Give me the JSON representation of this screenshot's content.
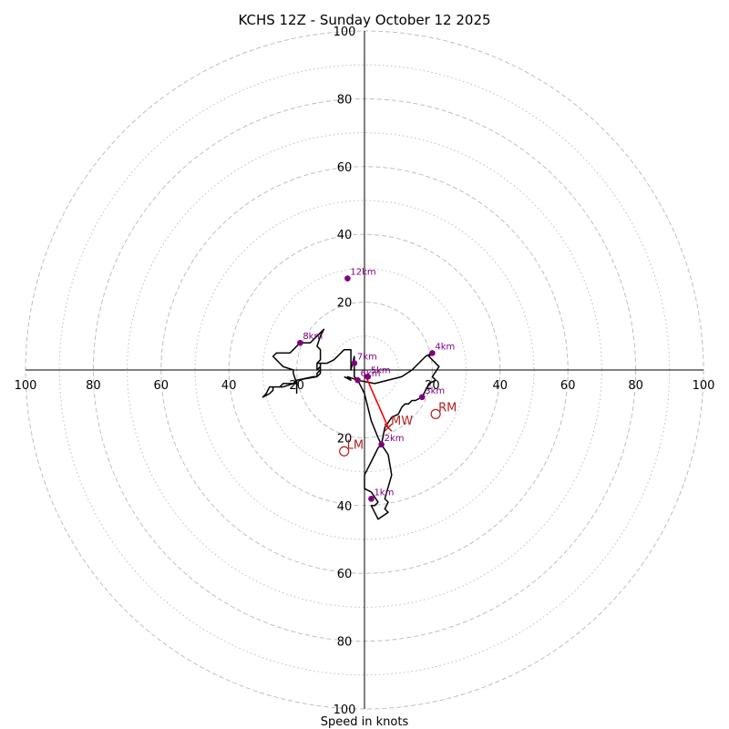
{
  "chart_data": {
    "type": "hodograph",
    "title": "KCHS 12Z - Sunday October 12 2025",
    "xlabel": "Speed in knots",
    "units": "knots",
    "range": [
      -100,
      100
    ],
    "major_rings": [
      20,
      40,
      60,
      80,
      100
    ],
    "minor_rings": [
      10,
      30,
      50,
      70,
      90
    ],
    "x_tick_labels": [
      "100",
      "80",
      "60",
      "40",
      "20",
      "20",
      "40",
      "60",
      "80",
      "100"
    ],
    "x_tick_values": [
      -100,
      -80,
      -60,
      -40,
      -20,
      20,
      40,
      60,
      80,
      100
    ],
    "y_tick_labels": [
      "100",
      "80",
      "60",
      "40",
      "20",
      "20",
      "40",
      "60",
      "80",
      "100"
    ],
    "y_tick_values": [
      100,
      80,
      60,
      40,
      20,
      -20,
      -40,
      -60,
      -80,
      -100
    ],
    "hodograph_trace": [
      [
        -6,
        -2
      ],
      [
        -4,
        -3
      ],
      [
        -5,
        -2
      ],
      [
        -2,
        -3
      ],
      [
        3,
        -4
      ],
      [
        11,
        -2
      ],
      [
        14,
        0
      ],
      [
        18,
        4
      ],
      [
        20,
        5
      ],
      [
        19,
        4
      ],
      [
        22,
        1
      ],
      [
        20,
        -2
      ],
      [
        21,
        -3
      ],
      [
        19,
        -4
      ],
      [
        17,
        -8
      ],
      [
        15,
        -9
      ],
      [
        14,
        -9
      ],
      [
        13,
        -10
      ],
      [
        12,
        -10
      ],
      [
        11,
        -11
      ],
      [
        10,
        -13
      ],
      [
        8,
        -14
      ],
      [
        6,
        -17
      ],
      [
        5,
        -22
      ],
      [
        4,
        -23
      ],
      [
        3,
        -25
      ],
      [
        1,
        -29
      ],
      [
        0,
        -31
      ],
      [
        0,
        -35
      ],
      [
        2,
        -36
      ],
      [
        4,
        -39
      ],
      [
        3,
        -40
      ],
      [
        2,
        -40
      ],
      [
        4,
        -44
      ],
      [
        7,
        -42
      ],
      [
        6,
        -41
      ],
      [
        7,
        -39
      ],
      [
        6,
        -38
      ],
      [
        8,
        -31
      ],
      [
        7,
        -25
      ],
      [
        5,
        -22
      ],
      [
        4,
        -20
      ],
      [
        2,
        -15
      ],
      [
        1,
        -11
      ],
      [
        0,
        -7
      ],
      [
        -1,
        -5
      ],
      [
        -2,
        -3
      ],
      [
        -3,
        -2
      ],
      [
        -3,
        2
      ],
      [
        -3,
        4
      ],
      [
        -4,
        0
      ],
      [
        -4,
        6
      ],
      [
        -6,
        6
      ],
      [
        -7,
        5
      ],
      [
        -9,
        3
      ],
      [
        -11,
        2
      ],
      [
        -14,
        2
      ],
      [
        -14,
        0
      ],
      [
        -13,
        1
      ],
      [
        -13,
        0
      ],
      [
        -14,
        -1
      ],
      [
        -14,
        -2
      ],
      [
        -15,
        -2
      ],
      [
        -20,
        -3
      ],
      [
        -20,
        -4
      ],
      [
        -21,
        -4
      ],
      [
        -24,
        -5
      ],
      [
        -25,
        -5
      ],
      [
        -27,
        -5
      ],
      [
        -27,
        -6
      ],
      [
        -28,
        -7
      ],
      [
        -30,
        -8
      ],
      [
        -29,
        -7
      ],
      [
        -28,
        -5
      ],
      [
        -27,
        -5
      ],
      [
        -25,
        -5
      ],
      [
        -24,
        -4
      ],
      [
        -21,
        -4
      ],
      [
        -20,
        -3
      ],
      [
        -14,
        -2
      ],
      [
        -13,
        -1
      ],
      [
        -13,
        0
      ],
      [
        -13,
        2
      ],
      [
        -14,
        2
      ],
      [
        -13,
        3
      ],
      [
        -13,
        6
      ],
      [
        -14,
        7
      ],
      [
        -13,
        10
      ],
      [
        -12,
        12
      ],
      [
        -13,
        11
      ],
      [
        -14,
        10
      ],
      [
        -16,
        8
      ],
      [
        -19,
        8
      ],
      [
        -21,
        6
      ],
      [
        -22,
        5
      ],
      [
        -23,
        5
      ],
      [
        -24,
        5
      ],
      [
        -26,
        5
      ],
      [
        -27,
        4
      ],
      [
        -26,
        3
      ],
      [
        -25,
        2
      ],
      [
        -24,
        1
      ],
      [
        -21,
        0
      ],
      [
        -21,
        -1
      ],
      [
        -20,
        -4
      ],
      [
        -20,
        -7
      ],
      [
        -20,
        -7
      ]
    ],
    "height_markers": [
      {
        "label": "1km",
        "u": 2,
        "v": -38
      },
      {
        "label": "2km",
        "u": 5,
        "v": -22
      },
      {
        "label": "3km",
        "u": 17,
        "v": -8
      },
      {
        "label": "4km",
        "u": 20,
        "v": 5
      },
      {
        "label": "5km",
        "u": 1,
        "v": -2
      },
      {
        "label": "6km",
        "u": -2,
        "v": -3
      },
      {
        "label": "7km",
        "u": -3,
        "v": 2
      },
      {
        "label": "8km",
        "u": -19,
        "v": 8
      },
      {
        "label": "12km",
        "u": -5,
        "v": 27
      }
    ],
    "motion_markers": [
      {
        "label": "RM",
        "u": 21,
        "v": -13
      },
      {
        "label": "LM",
        "u": -6,
        "v": -24
      },
      {
        "label": "MW",
        "u": 7,
        "v": -17
      }
    ],
    "mean_wind_vector": {
      "from": [
        0,
        -1
      ],
      "to": [
        7,
        -17
      ]
    }
  },
  "colors": {
    "ring": "#bfbfbf",
    "axis": "#000000",
    "trace": "#000000",
    "height_marker": "#800080",
    "motion": "#b22222",
    "mean_wind_arrow": "#ff0000"
  }
}
